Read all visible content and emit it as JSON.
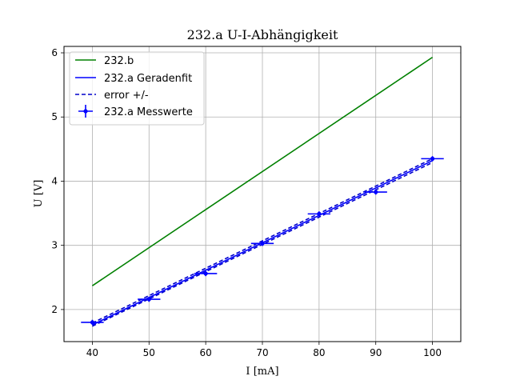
{
  "chart_data": {
    "type": "line",
    "title": "232.a U-I-Abhängigkeit",
    "xlabel": "I [mA]",
    "ylabel": "U [V]",
    "xlim": [
      35,
      105
    ],
    "ylim": [
      1.5,
      6.1
    ],
    "xticks": [
      40,
      50,
      60,
      70,
      80,
      90,
      100
    ],
    "yticks": [
      2,
      3,
      4,
      5,
      6
    ],
    "grid": true,
    "legend_position": "top-left",
    "series": [
      {
        "name": "232.b",
        "kind": "line",
        "color": "#008000",
        "x": [
          40,
          100
        ],
        "y": [
          2.37,
          5.93
        ]
      },
      {
        "name": "232.a Geradenfit",
        "kind": "line",
        "color": "#0000ff",
        "x": [
          40,
          100
        ],
        "y": [
          1.76,
          4.32
        ]
      },
      {
        "name": "error +/-",
        "kind": "dashed",
        "color": "#0000cc",
        "lines": [
          {
            "x": [
              40,
              100
            ],
            "y": [
              1.74,
              4.29
            ]
          },
          {
            "x": [
              40,
              100
            ],
            "y": [
              1.79,
              4.35
            ]
          }
        ]
      },
      {
        "name": "232.a Messwerte",
        "kind": "errorbar",
        "color": "#0000ff",
        "x": [
          40,
          50,
          60,
          70,
          80,
          90,
          100
        ],
        "y": [
          1.8,
          2.16,
          2.56,
          3.03,
          3.49,
          3.83,
          4.35
        ],
        "xerr": [
          2.0,
          2.0,
          2.0,
          2.0,
          2.0,
          2.0,
          2.0
        ],
        "yerr": [
          0.04,
          0.04,
          0.04,
          0.04,
          0.04,
          0.04,
          0.04
        ]
      }
    ]
  }
}
